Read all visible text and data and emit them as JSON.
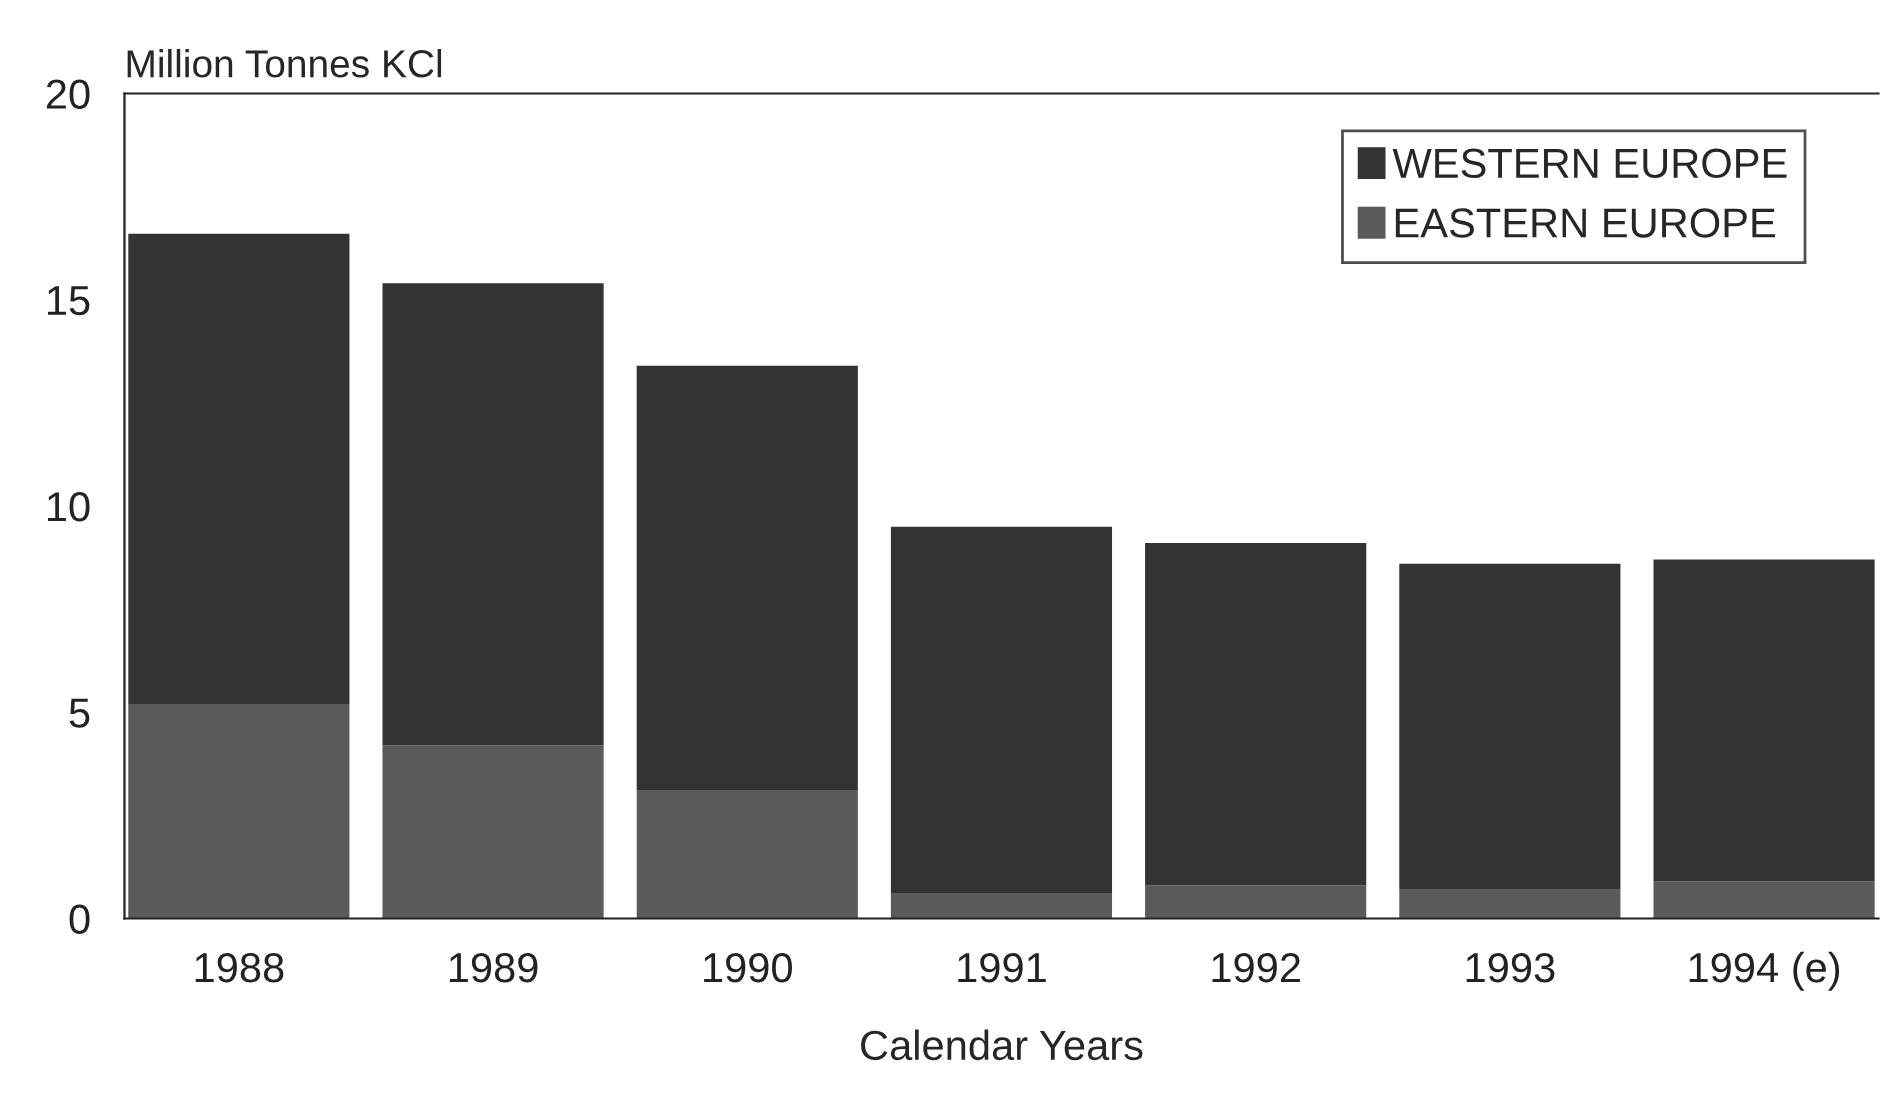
{
  "chart_data": {
    "type": "bar",
    "stacked": true,
    "ylabel": "Million Tonnes KCl",
    "xlabel": "Calendar Years",
    "categories": [
      "1988",
      "1989",
      "1990",
      "1991",
      "1992",
      "1993",
      "1994 (e)"
    ],
    "series": [
      {
        "name": "EASTERN EUROPE",
        "color": "#5a5a5a",
        "values": [
          5.2,
          4.2,
          3.1,
          0.6,
          0.8,
          0.7,
          0.9
        ]
      },
      {
        "name": "WESTERN EUROPE",
        "color": "#333333",
        "values": [
          11.4,
          11.2,
          10.3,
          8.9,
          8.3,
          7.9,
          7.8
        ]
      }
    ],
    "ylim": [
      0,
      20
    ],
    "yticks": [
      0,
      5,
      10,
      15,
      20
    ],
    "legend": "top right"
  }
}
